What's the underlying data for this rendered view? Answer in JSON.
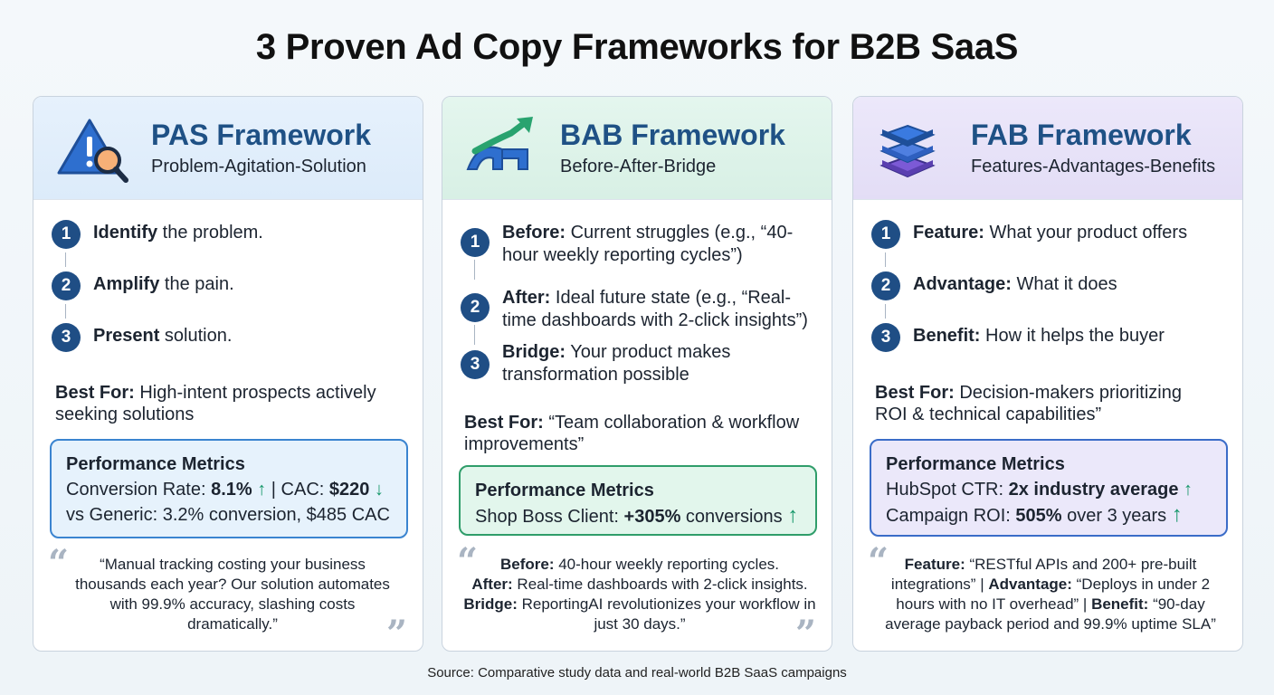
{
  "title": "3 Proven Ad Copy Frameworks for B2B SaaS",
  "source": "Source: Comparative study data and real-world B2B SaaS campaigns",
  "colors": {
    "accent_blue": "#1f5185",
    "pas_border": "#3a84d0",
    "bab_border": "#2f9d6a",
    "fab_border": "#3a6cc8",
    "up_arrow": "#16976a"
  },
  "pas": {
    "title": "PAS Framework",
    "subtitle": "Problem-Agitation-Solution",
    "icon": "warning-magnifier-icon",
    "steps": [
      {
        "num": "1",
        "bold": "Identify",
        "text": " the problem."
      },
      {
        "num": "2",
        "bold": "Amplify",
        "text": " the pain."
      },
      {
        "num": "3",
        "bold": "Present",
        "text": " solution."
      }
    ],
    "best_for_label": "Best For:",
    "best_for": " High-intent prospects actively seeking solutions",
    "metrics_title": "Performance Metrics",
    "m1_label": "Conversion Rate: ",
    "m1_value": "8.1%",
    "m1_sep": " | CAC: ",
    "m1_value2": "$220",
    "m2": "vs Generic: 3.2% conversion, $485 CAC",
    "quote": "“Manual tracking costing your business thousands each year? Our solution automates with 99.9% accuracy, slashing costs dramatically.”"
  },
  "bab": {
    "title": "BAB Framework",
    "subtitle": "Before-After-Bridge",
    "icon": "bridge-arrow-icon",
    "steps": [
      {
        "num": "1",
        "bold": "Before:",
        "text": " Current struggles (e.g., “40-hour weekly reporting cycles”)"
      },
      {
        "num": "2",
        "bold": "After:",
        "text": " Ideal future state (e.g., “Real-time dashboards with 2-click insights”)"
      },
      {
        "num": "3",
        "bold": "Bridge:",
        "text": " Your product makes transformation possible"
      }
    ],
    "best_for_label": "Best For:",
    "best_for": " “Team collaboration & workflow improvements”",
    "metrics_title": "Performance Metrics",
    "m1_label": "Shop Boss Client: ",
    "m1_value": "+305%",
    "m1_tail": " conversions",
    "quote_before_label": "Before:",
    "quote_before": " 40-hour weekly reporting cycles.",
    "quote_after_label": "After:",
    "quote_after": " Real-time dashboards with 2-click insights.",
    "quote_bridge_label": "Bridge:",
    "quote_bridge": " ReportingAI revolutionizes your workflow in just 30 days.”"
  },
  "fab": {
    "title": "FAB Framework",
    "subtitle": "Features-Advantages-Benefits",
    "icon": "layers-stack-icon",
    "steps": [
      {
        "num": "1",
        "bold": "Feature:",
        "text": " What your product offers"
      },
      {
        "num": "2",
        "bold": "Advantage:",
        "text": " What it does"
      },
      {
        "num": "3",
        "bold": "Benefit:",
        "text": " How it helps the buyer"
      }
    ],
    "best_for_label": "Best For:",
    "best_for": " Decision-makers prioritizing ROI & technical capabilities”",
    "metrics_title": "Performance Metrics",
    "m1_label": "HubSpot CTR: ",
    "m1_value": "2x industry average",
    "m2_label": "Campaign ROI: ",
    "m2_value": "505%",
    "m2_tail": " over 3 years",
    "quote_feature_label": "Feature:",
    "quote_feature": " “RESTful APIs and 200+ pre-built integrations” | ",
    "quote_adv_label": "Advantage:",
    "quote_adv": " “Deploys in under 2 hours with no IT overhead” | ",
    "quote_benefit_label": "Benefit:",
    "quote_benefit": " “90-day average payback period and 99.9% uptime SLA”"
  }
}
